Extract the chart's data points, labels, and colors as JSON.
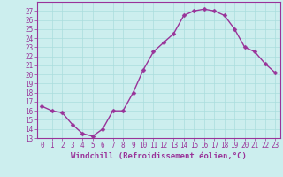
{
  "x": [
    0,
    1,
    2,
    3,
    4,
    5,
    6,
    7,
    8,
    9,
    10,
    11,
    12,
    13,
    14,
    15,
    16,
    17,
    18,
    19,
    20,
    21,
    22,
    23
  ],
  "y": [
    16.5,
    16.0,
    15.8,
    14.5,
    13.5,
    13.2,
    14.0,
    16.0,
    16.0,
    18.0,
    20.5,
    22.5,
    23.5,
    24.5,
    26.5,
    27.0,
    27.2,
    27.0,
    26.5,
    25.0,
    23.0,
    22.5,
    21.2,
    20.2
  ],
  "line_color": "#993399",
  "marker_color": "#993399",
  "bg_color": "#cceeee",
  "grid_color": "#aadddd",
  "xlabel": "Windchill (Refroidissement éolien,°C)",
  "xlim": [
    -0.5,
    23.5
  ],
  "ylim": [
    13,
    28
  ],
  "yticks": [
    13,
    14,
    15,
    16,
    17,
    18,
    19,
    20,
    21,
    22,
    23,
    24,
    25,
    26,
    27
  ],
  "xticks": [
    0,
    1,
    2,
    3,
    4,
    5,
    6,
    7,
    8,
    9,
    10,
    11,
    12,
    13,
    14,
    15,
    16,
    17,
    18,
    19,
    20,
    21,
    22,
    23
  ],
  "tick_label_fontsize": 5.5,
  "xlabel_fontsize": 6.5,
  "xlabel_color": "#993399",
  "tick_color": "#993399",
  "spine_color": "#993399",
  "line_width": 1.0,
  "marker_size": 2.5
}
